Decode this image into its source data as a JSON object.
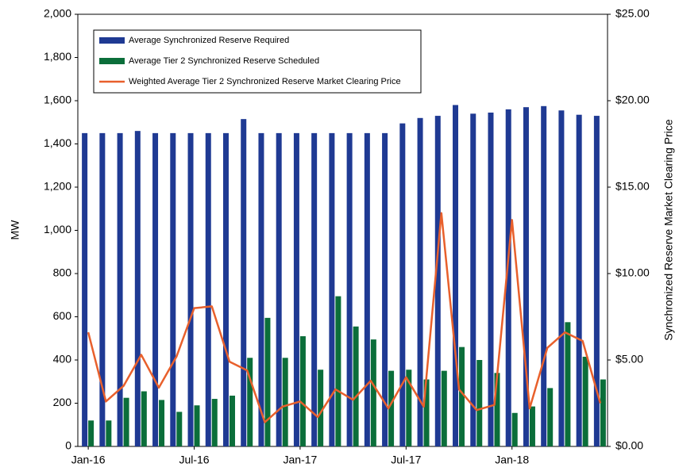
{
  "chart_data": {
    "type": "bar_line",
    "ylabel": "MW",
    "y2label": "Synchronized Reserve Market Clearing Price",
    "categories": [
      "Jan-16",
      null,
      null,
      null,
      null,
      null,
      "Jul-16",
      null,
      null,
      null,
      null,
      null,
      "Jan-17",
      null,
      null,
      null,
      null,
      null,
      "Jul-17",
      null,
      null,
      null,
      null,
      null,
      "Jan-18",
      null,
      null,
      null,
      null,
      null
    ],
    "series": [
      {
        "name": "Average Synchronized Reserve Required",
        "color": "#1f3a93",
        "kind": "bar",
        "values": [
          1450,
          1450,
          1450,
          1460,
          1450,
          1450,
          1450,
          1450,
          1450,
          1515,
          1450,
          1450,
          1450,
          1450,
          1450,
          1450,
          1450,
          1450,
          1495,
          1520,
          1530,
          1580,
          1540,
          1545,
          1560,
          1570,
          1575,
          1555,
          1535,
          1530
        ]
      },
      {
        "name": "Average Tier 2 Synchronized Reserve Scheduled",
        "color": "#0b6e3a",
        "kind": "bar",
        "values": [
          120,
          120,
          225,
          255,
          215,
          160,
          190,
          220,
          235,
          410,
          595,
          410,
          510,
          355,
          695,
          555,
          495,
          350,
          355,
          310,
          350,
          460,
          400,
          340,
          155,
          185,
          270,
          575,
          415,
          310
        ]
      },
      {
        "name": "Weighted Average Tier 2 Synchronized Reserve Market Clearing Price",
        "color": "#e8602c",
        "kind": "line",
        "axis": "y2",
        "values": [
          6.6,
          2.6,
          3.5,
          5.3,
          3.4,
          5.2,
          8.0,
          8.1,
          4.9,
          4.4,
          1.4,
          2.3,
          2.6,
          1.7,
          3.3,
          2.7,
          3.8,
          2.2,
          4.0,
          2.3,
          13.5,
          3.3,
          2.1,
          2.4,
          13.1,
          2.2,
          5.7,
          6.6,
          6.1,
          2.5
        ]
      }
    ],
    "ylim": [
      0,
      2000
    ],
    "yticks": [
      0,
      200,
      400,
      600,
      800,
      {
        "value": 1000,
        "label": "1,000"
      },
      {
        "value": 1200,
        "label": "1,200"
      },
      {
        "value": 1400,
        "label": "1,400"
      },
      {
        "value": 1600,
        "label": "1,600"
      },
      {
        "value": 1800,
        "label": "1,800"
      },
      {
        "value": 2000,
        "label": "2,000"
      }
    ],
    "y2lim": [
      0,
      25
    ],
    "y2ticks": [
      {
        "value": 0,
        "label": "$0.00"
      },
      {
        "value": 5,
        "label": "$5.00"
      },
      {
        "value": 10,
        "label": "$10.00"
      },
      {
        "value": 15,
        "label": "$15.00"
      },
      {
        "value": 20,
        "label": "$20.00"
      },
      {
        "value": 25,
        "label": "$25.00"
      }
    ],
    "grid": false
  }
}
